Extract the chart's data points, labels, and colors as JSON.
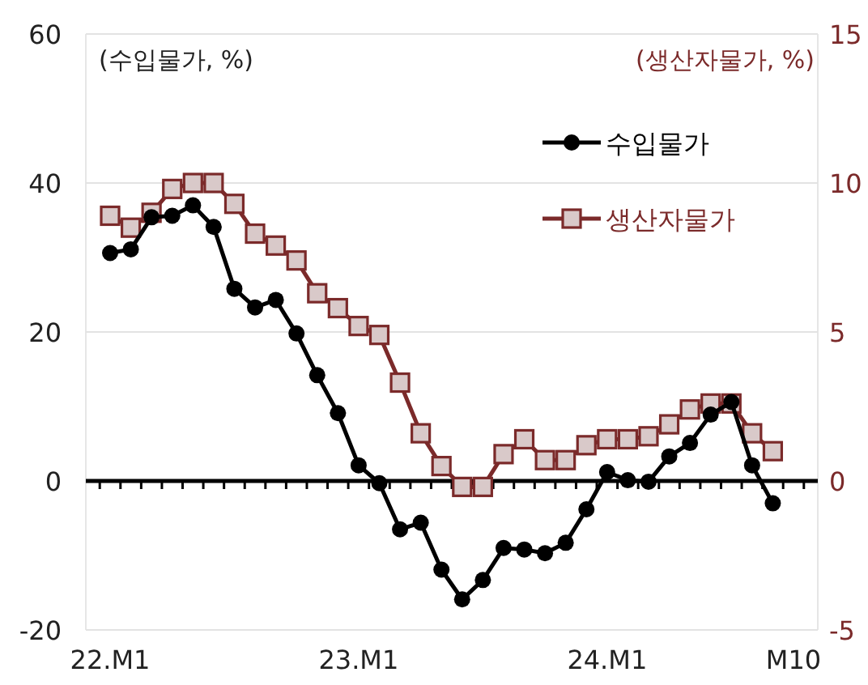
{
  "chart_data": {
    "type": "line",
    "categories": [
      "22.M1",
      null,
      null,
      null,
      null,
      null,
      null,
      null,
      null,
      null,
      null,
      null,
      "23.M1",
      null,
      null,
      null,
      null,
      null,
      null,
      null,
      null,
      null,
      null,
      null,
      "24.M1",
      null,
      null,
      null,
      null,
      null,
      null,
      null,
      null,
      "M10"
    ],
    "ylabel": "(수입물가, %)",
    "y2label": "(생산자물가, %)",
    "ylim": [
      -20,
      60
    ],
    "yticks": [
      -20,
      0,
      20,
      40,
      60
    ],
    "y2lim": [
      -5,
      15
    ],
    "y2ticks": [
      -5,
      0,
      5,
      10,
      15
    ],
    "grid": "y",
    "legend": "top right",
    "series": [
      {
        "name": "수입물가",
        "color": "#000000",
        "marker": "circle",
        "values": [
          30.6,
          31.1,
          35.4,
          35.6,
          37.0,
          34.1,
          25.8,
          23.3,
          24.3,
          19.8,
          14.2,
          9.1,
          2.1,
          -0.3,
          -6.5,
          -5.6,
          -11.9,
          -15.9,
          -13.3,
          -9.0,
          -9.2,
          -9.7,
          -8.3,
          -3.8,
          1.2,
          0.1,
          -0.1,
          3.3,
          5.1,
          8.9,
          10.6,
          2.1,
          -3.0,
          null
        ]
      },
      {
        "name": "생산자물가",
        "color": "#7b2a2a",
        "marker": "square",
        "axis": "y2",
        "values": [
          8.9,
          8.5,
          9.0,
          9.8,
          10.0,
          10.0,
          9.3,
          8.3,
          7.9,
          7.4,
          6.3,
          5.8,
          5.2,
          4.9,
          3.3,
          1.6,
          0.5,
          -0.2,
          -0.2,
          0.9,
          1.4,
          0.7,
          0.7,
          1.2,
          1.4,
          1.4,
          1.5,
          1.9,
          2.4,
          2.6,
          2.6,
          1.6,
          1.0,
          null
        ]
      }
    ]
  }
}
